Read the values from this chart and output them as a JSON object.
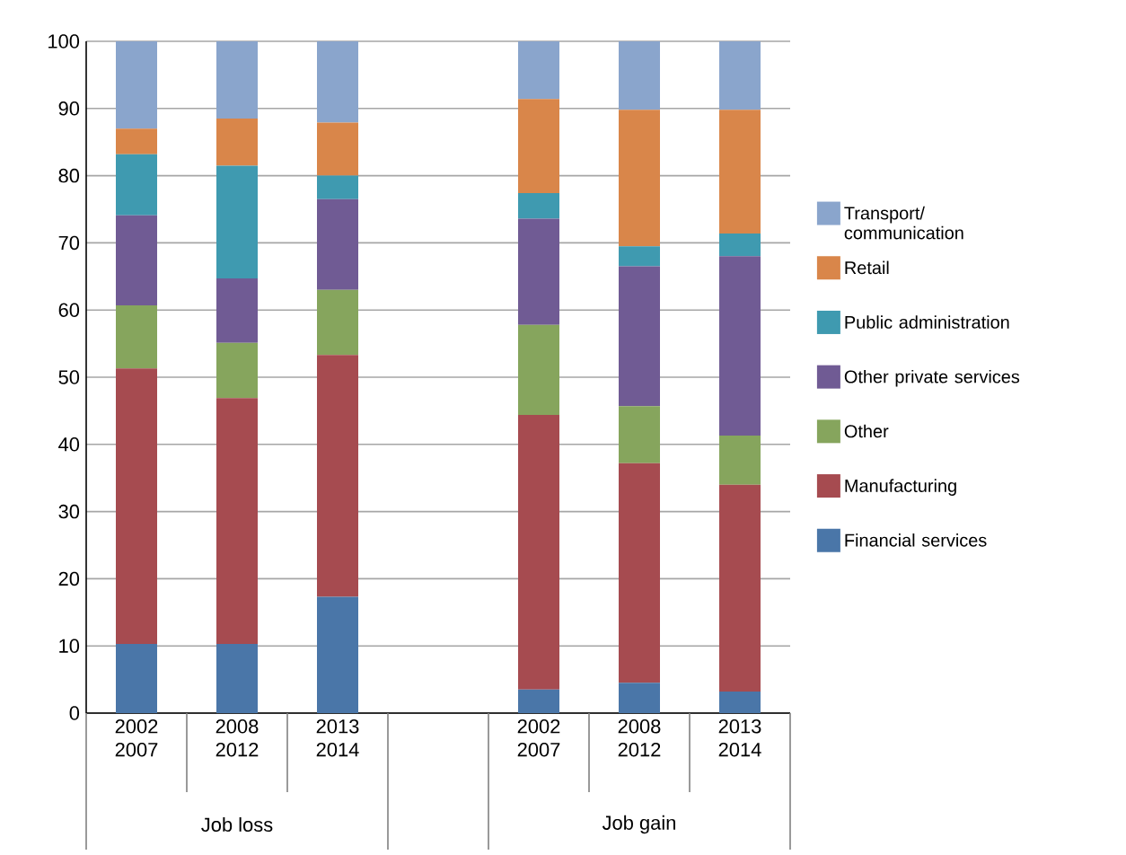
{
  "chart_data": {
    "type": "bar",
    "stacked": true,
    "categories": [
      "2002 2007",
      "2008 2012",
      "2013 2014",
      null,
      "2002 2007",
      "2008 2012",
      "2013 2014"
    ],
    "series": [
      {
        "name": "Financial services",
        "color": "#4a76a8",
        "values": [
          10.3,
          10.3,
          17.3,
          null,
          3.5,
          4.5,
          3.2
        ]
      },
      {
        "name": "Manufacturing",
        "color": "#a64b50",
        "values": [
          41.0,
          36.6,
          36.0,
          null,
          40.9,
          32.7,
          30.8
        ]
      },
      {
        "name": "Other",
        "color": "#86a55d",
        "values": [
          9.4,
          8.2,
          9.7,
          null,
          13.4,
          8.5,
          7.3
        ]
      },
      {
        "name": "Other private services",
        "color": "#705b94",
        "values": [
          13.4,
          9.6,
          13.5,
          null,
          15.8,
          20.8,
          26.7
        ]
      },
      {
        "name": "Public administration",
        "color": "#3f9ab0",
        "values": [
          9.1,
          16.8,
          3.5,
          null,
          3.8,
          3.0,
          3.4
        ]
      },
      {
        "name": "Retail",
        "color": "#d9864a",
        "values": [
          3.8,
          7.0,
          7.9,
          null,
          14.0,
          20.3,
          18.4
        ]
      },
      {
        "name": "Transport/ communication",
        "color": "#8aa5cc",
        "values": [
          13.0,
          11.5,
          12.1,
          null,
          8.6,
          10.2,
          10.2
        ]
      }
    ],
    "ylim": [
      0,
      100
    ],
    "yticks": [
      0,
      10,
      20,
      30,
      40,
      50,
      60,
      70,
      80,
      90,
      100
    ],
    "grid": "y",
    "legend": "right",
    "annotations": [
      "Job loss",
      "Job gain"
    ]
  }
}
